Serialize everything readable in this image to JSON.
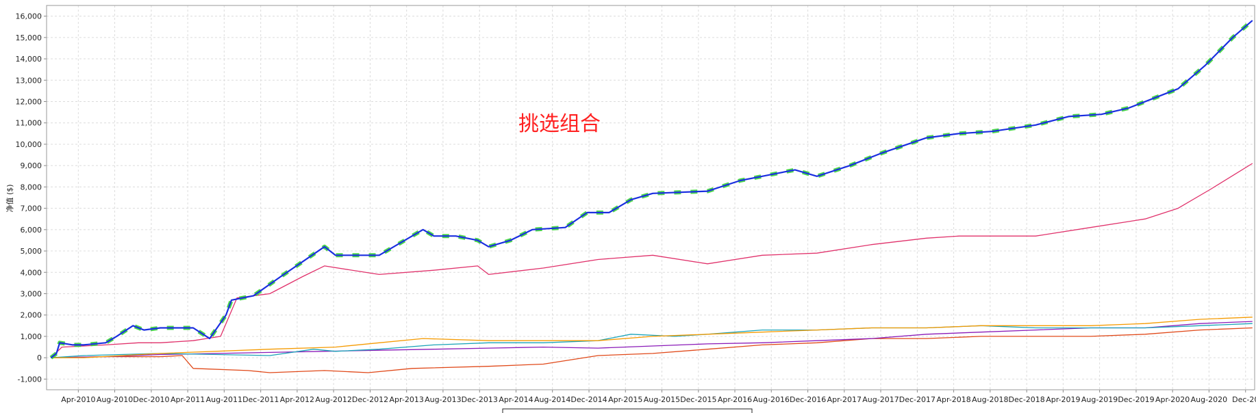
{
  "chart_data": {
    "type": "line",
    "ylabel": "净值 ($)",
    "annotation": "挑选组合",
    "ylim": [
      -1500,
      16500
    ],
    "xlim": [
      2009.96,
      2021.0
    ],
    "grid": true,
    "y_ticks": [
      -1000,
      0,
      1000,
      2000,
      3000,
      4000,
      5000,
      6000,
      7000,
      8000,
      9000,
      10000,
      11000,
      12000,
      13000,
      14000,
      15000,
      16000
    ],
    "y_tick_labels": [
      "-1,000",
      "0",
      "1,000",
      "2,000",
      "3,000",
      "4,000",
      "5,000",
      "6,000",
      "7,000",
      "8,000",
      "9,000",
      "10,000",
      "11,000",
      "12,000",
      "13,000",
      "14,000",
      "15,000",
      "16,000"
    ],
    "x_ticks": [
      {
        "label": "Apr-2010",
        "t": 2010.25
      },
      {
        "label": "Aug-2010",
        "t": 2010.583
      },
      {
        "label": "Dec-2010",
        "t": 2010.917
      },
      {
        "label": "Apr-2011",
        "t": 2011.25
      },
      {
        "label": "Aug-2011",
        "t": 2011.583
      },
      {
        "label": "Dec-2011",
        "t": 2011.917
      },
      {
        "label": "Apr-2012",
        "t": 2012.25
      },
      {
        "label": "Aug-2012",
        "t": 2012.583
      },
      {
        "label": "Dec-2012",
        "t": 2012.917
      },
      {
        "label": "Apr-2013",
        "t": 2013.25
      },
      {
        "label": "Aug-2013",
        "t": 2013.583
      },
      {
        "label": "Dec-2013",
        "t": 2013.917
      },
      {
        "label": "Apr-2014",
        "t": 2014.25
      },
      {
        "label": "Aug-2014",
        "t": 2014.583
      },
      {
        "label": "Dec-2014",
        "t": 2014.917
      },
      {
        "label": "Apr-2015",
        "t": 2015.25
      },
      {
        "label": "Aug-2015",
        "t": 2015.583
      },
      {
        "label": "Dec-2015",
        "t": 2015.917
      },
      {
        "label": "Apr-2016",
        "t": 2016.25
      },
      {
        "label": "Aug-2016",
        "t": 2016.583
      },
      {
        "label": "Dec-2016",
        "t": 2016.917
      },
      {
        "label": "Apr-2017",
        "t": 2017.25
      },
      {
        "label": "Aug-2017",
        "t": 2017.583
      },
      {
        "label": "Dec-2017",
        "t": 2017.917
      },
      {
        "label": "Apr-2018",
        "t": 2018.25
      },
      {
        "label": "Aug-2018",
        "t": 2018.583
      },
      {
        "label": "Dec-2018",
        "t": 2018.917
      },
      {
        "label": "Apr-2019",
        "t": 2019.25
      },
      {
        "label": "Aug-2019",
        "t": 2019.583
      },
      {
        "label": "Dec-2019",
        "t": 2019.917
      },
      {
        "label": "Apr-2020",
        "t": 2020.25
      },
      {
        "label": "Aug-2020",
        "t": 2020.583
      },
      {
        "label": "Dec-20",
        "t": 2020.917
      }
    ],
    "series": [
      {
        "color": "#1a2ee0",
        "highlight_color": "#3ad13a",
        "t": [
          2010.0,
          2010.05,
          2010.08,
          2010.2,
          2010.3,
          2010.5,
          2010.6,
          2010.75,
          2010.85,
          2011.0,
          2011.3,
          2011.45,
          2011.6,
          2011.65,
          2011.85,
          2012.1,
          2012.3,
          2012.5,
          2012.6,
          2012.8,
          2013.0,
          2013.2,
          2013.4,
          2013.5,
          2013.7,
          2013.9,
          2014.0,
          2014.2,
          2014.4,
          2014.7,
          2014.9,
          2015.1,
          2015.3,
          2015.5,
          2016.0,
          2016.3,
          2016.5,
          2016.8,
          2017.0,
          2017.3,
          2017.6,
          2018.0,
          2018.3,
          2018.6,
          2019.0,
          2019.3,
          2019.6,
          2019.85,
          2020.1,
          2020.3,
          2020.55,
          2020.8,
          2020.98
        ],
        "values": [
          0,
          200,
          700,
          600,
          600,
          700,
          1000,
          1500,
          1300,
          1400,
          1400,
          900,
          2000,
          2700,
          2900,
          3800,
          4500,
          5200,
          4800,
          4800,
          4800,
          5400,
          6000,
          5700,
          5700,
          5500,
          5200,
          5500,
          6000,
          6100,
          6800,
          6800,
          7400,
          7700,
          7800,
          8300,
          8500,
          8800,
          8500,
          9000,
          9600,
          10300,
          10500,
          10600,
          10900,
          11300,
          11400,
          11700,
          12200,
          12600,
          13700,
          15000,
          15800
        ]
      },
      {
        "color": "#e0306a",
        "t": [
          2010.0,
          2010.1,
          2010.5,
          2010.8,
          2011.0,
          2011.3,
          2011.55,
          2011.7,
          2012.0,
          2012.3,
          2012.5,
          2013.0,
          2013.5,
          2013.9,
          2014.0,
          2014.5,
          2015.0,
          2015.5,
          2016.0,
          2016.5,
          2017.0,
          2017.5,
          2018.0,
          2018.3,
          2019.0,
          2019.5,
          2020.0,
          2020.3,
          2020.6,
          2020.98
        ],
        "values": [
          0,
          500,
          600,
          700,
          700,
          800,
          1000,
          2800,
          3000,
          3800,
          4300,
          3900,
          4100,
          4300,
          3900,
          4200,
          4600,
          4800,
          4400,
          4800,
          4900,
          5300,
          5600,
          5700,
          5700,
          6100,
          6500,
          7000,
          7900,
          9100
        ]
      },
      {
        "color": "#f59a00",
        "t": [
          2010.0,
          2010.3,
          2011.0,
          2012.0,
          2012.6,
          2013.0,
          2013.4,
          2014.0,
          2014.5,
          2015.0,
          2015.5,
          2016.0,
          2016.5,
          2017.0,
          2017.5,
          2018.0,
          2018.5,
          2019.0,
          2019.5,
          2020.0,
          2020.5,
          2020.98
        ],
        "values": [
          0,
          0,
          200,
          400,
          500,
          700,
          900,
          800,
          800,
          800,
          1000,
          1100,
          1200,
          1300,
          1400,
          1400,
          1500,
          1500,
          1500,
          1600,
          1800,
          1900
        ]
      },
      {
        "color": "#1aa3b8",
        "t": [
          2010.0,
          2010.3,
          2011.0,
          2012.0,
          2012.4,
          2012.6,
          2013.0,
          2013.5,
          2014.0,
          2014.5,
          2015.0,
          2015.3,
          2015.7,
          2016.0,
          2016.5,
          2017.0,
          2017.5,
          2018.0,
          2018.5,
          2019.0,
          2019.5,
          2020.0,
          2020.5,
          2020.98
        ],
        "values": [
          0,
          100,
          200,
          100,
          400,
          300,
          400,
          600,
          700,
          700,
          800,
          1100,
          1000,
          1100,
          1300,
          1300,
          1400,
          1400,
          1500,
          1400,
          1400,
          1400,
          1500,
          1600
        ]
      },
      {
        "color": "#8a1ab8",
        "t": [
          2010.0,
          2010.5,
          2011.0,
          2012.0,
          2012.5,
          2013.0,
          2013.5,
          2014.0,
          2014.5,
          2015.0,
          2015.5,
          2016.0,
          2016.5,
          2017.0,
          2017.5,
          2018.0,
          2018.5,
          2019.0,
          2019.5,
          2020.0,
          2020.5,
          2020.98
        ],
        "values": [
          0,
          50,
          150,
          250,
          300,
          350,
          400,
          450,
          500,
          450,
          550,
          650,
          700,
          800,
          900,
          1100,
          1200,
          1300,
          1400,
          1400,
          1600,
          1700
        ]
      },
      {
        "color": "#e04818",
        "t": [
          2010.0,
          2010.5,
          2011.0,
          2011.2,
          2011.3,
          2011.8,
          2012.0,
          2012.5,
          2012.9,
          2013.3,
          2014.0,
          2014.5,
          2015.0,
          2015.5,
          2016.0,
          2016.5,
          2017.0,
          2017.5,
          2018.0,
          2018.5,
          2019.0,
          2019.5,
          2020.0,
          2020.5,
          2020.98
        ],
        "values": [
          0,
          50,
          50,
          100,
          -500,
          -600,
          -700,
          -600,
          -700,
          -500,
          -400,
          -300,
          100,
          200,
          400,
          600,
          700,
          900,
          900,
          1000,
          1000,
          1000,
          1100,
          1300,
          1400
        ]
      }
    ]
  }
}
